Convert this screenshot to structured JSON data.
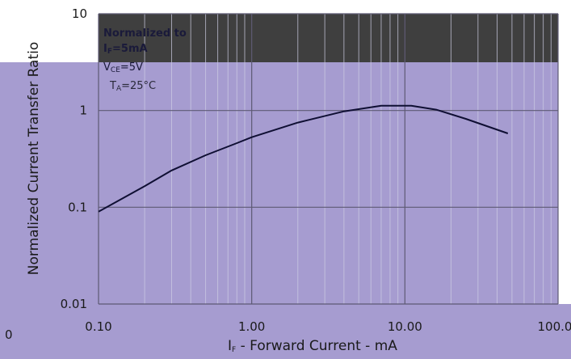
{
  "chart_data": {
    "type": "line",
    "scale": {
      "x": "log",
      "y": "log"
    },
    "xlim": [
      0.1,
      100
    ],
    "ylim": [
      0.01,
      10
    ],
    "grid": true,
    "x_ticks": [
      0.1,
      1,
      10,
      100
    ],
    "y_ticks": [
      0.01,
      0.1,
      1,
      10
    ],
    "x_tick_labels": [
      "0.10",
      "1.00",
      "10.00",
      "100.0"
    ],
    "y_tick_labels": [
      "0.01",
      "0.1",
      "1",
      "10"
    ],
    "left_tick_fragment": "0",
    "ylabel": "Normalized Current Transfer Ratio",
    "xlabel": {
      "symbol": "I",
      "subscript": "F",
      "text": " - Forward Current - mA"
    },
    "annotation": {
      "heading": "Normalized to",
      "line1": {
        "symbol": "I",
        "subscript": "F",
        "value": "=5mA"
      },
      "line2": {
        "symbol": "V",
        "subscript": "CE",
        "value": "=5V"
      },
      "line3": {
        "symbol": "T",
        "subscript": "A",
        "value": "=25°C"
      }
    },
    "series": [
      {
        "x": [
          0.1,
          0.2,
          0.3,
          0.5,
          0.8,
          1,
          2,
          4,
          7,
          11,
          16,
          25,
          47
        ],
        "y": [
          0.09,
          0.165,
          0.24,
          0.345,
          0.46,
          0.53,
          0.75,
          0.98,
          1.12,
          1.12,
          1.02,
          0.82,
          0.58
        ]
      }
    ],
    "colors": {
      "plot_fill": "#a69cd0",
      "upper_region_fill": "#3f3f3f",
      "grid": "#cfcfe4",
      "major_grid": "#5e5a74",
      "line": "#0f0f33"
    }
  }
}
